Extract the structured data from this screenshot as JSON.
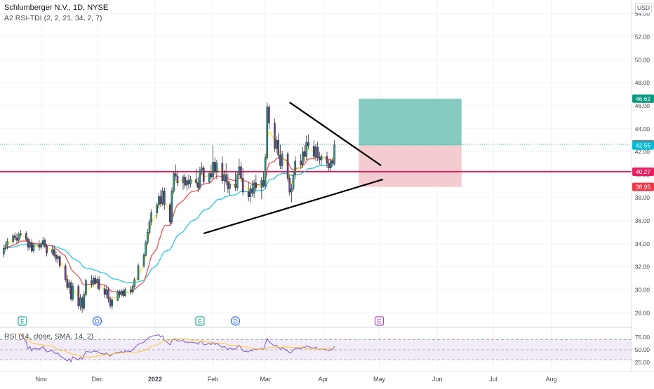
{
  "header": {
    "title": "Schlumberger N.V., 1D, NYSE",
    "indicator": "A2 RSI-TDI (2, 2, 21, 34, 2, 7)",
    "currency": "USD"
  },
  "rsi_pane": {
    "label": "RSI (14, close, SMA, 14, 2)"
  },
  "chart_data": [
    {
      "type": "candlestick",
      "y_ticks": [
        "54.00",
        "52.00",
        "50.00",
        "48.00",
        "46.00",
        "44.00",
        "42.00",
        "40.00",
        "38.00",
        "36.00",
        "34.00",
        "32.00",
        "30.00",
        "28.00"
      ],
      "ylim": [
        26.8,
        55.2
      ],
      "x_ticks": [
        {
          "label": "Nov",
          "day": 29
        },
        {
          "label": "Dec",
          "day": 59
        },
        {
          "label": "2022",
          "day": 90
        },
        {
          "label": "Feb",
          "day": 121
        },
        {
          "label": "Mar",
          "day": 149
        },
        {
          "label": "Apr",
          "day": 180
        },
        {
          "label": "May",
          "day": 210
        },
        {
          "label": "Jun",
          "day": 241
        },
        {
          "label": "Jul",
          "day": 271
        },
        {
          "label": "Aug",
          "day": 302
        }
      ],
      "xlim": [
        7,
        345
      ],
      "price_labels": [
        {
          "value": 46.62,
          "text": "46.62",
          "color": "#089981"
        },
        {
          "value": 42.65,
          "text": "42.65",
          "color": "#787b86"
        },
        {
          "value": 42.55,
          "text": "42.55",
          "color": "#00bcd4"
        },
        {
          "value": 40.27,
          "text": "40.27",
          "color": "#e91e63"
        },
        {
          "value": 38.95,
          "text": "38.95",
          "color": "#f23645"
        }
      ],
      "horizontal_line": {
        "value": 40.27,
        "color": "#e91e63"
      },
      "last_price_line": {
        "value": 42.65
      },
      "triangle_upper": {
        "from": {
          "day": 162,
          "price": 46.3
        },
        "to": {
          "day": 211,
          "price": 40.8
        }
      },
      "triangle_lower": {
        "from": {
          "day": 116,
          "price": 34.9
        },
        "to": {
          "day": 212,
          "price": 39.6
        }
      },
      "position": {
        "day_start": 199,
        "day_end": 254,
        "entry": 42.55,
        "target": 46.62,
        "stop": 38.95,
        "profit_color": "#80c7bf",
        "loss_color": "#f3c8cc"
      },
      "events": [
        {
          "type": "E",
          "day": 19,
          "color": "#26a69a"
        },
        {
          "type": "D",
          "day": 59,
          "color": "#2962ff"
        },
        {
          "type": "E",
          "day": 114,
          "color": "#26a69a"
        },
        {
          "type": "D",
          "day": 133,
          "color": "#2962ff"
        },
        {
          "type": "E",
          "day": 210,
          "color": "#ab47bc"
        }
      ],
      "colors": {
        "up": "#26a69a",
        "down": "#7e3f98",
        "ema_fast": "#ffeb3b",
        "ema_mid": "#ef5350",
        "ema_slow": "#26c6da"
      },
      "candles": [
        [
          9,
          33.1,
          33.9,
          32.8,
          33.6
        ],
        [
          10,
          33.6,
          34.2,
          33.3,
          33.9
        ],
        [
          11,
          33.9,
          34.5,
          33.5,
          34.2
        ],
        [
          14,
          34.2,
          34.9,
          34.0,
          34.7
        ],
        [
          15,
          34.7,
          35.0,
          34.3,
          34.5
        ],
        [
          16,
          34.5,
          34.9,
          34.0,
          34.3
        ],
        [
          17,
          34.3,
          35.0,
          34.1,
          34.8
        ],
        [
          18,
          34.8,
          35.2,
          34.5,
          34.9
        ],
        [
          21,
          34.9,
          35.1,
          34.2,
          34.4
        ],
        [
          22,
          34.4,
          34.6,
          33.4,
          33.7
        ],
        [
          23,
          33.7,
          34.4,
          33.5,
          34.1
        ],
        [
          24,
          34.1,
          34.4,
          33.2,
          33.4
        ],
        [
          25,
          33.4,
          34.1,
          33.2,
          33.9
        ],
        [
          28,
          33.9,
          34.3,
          33.4,
          33.7
        ],
        [
          29,
          33.7,
          34.2,
          33.5,
          34.0
        ],
        [
          30,
          34.0,
          34.6,
          33.7,
          34.3
        ],
        [
          31,
          34.3,
          34.5,
          33.6,
          33.8
        ],
        [
          32,
          33.8,
          34.0,
          32.9,
          33.2
        ],
        [
          35,
          33.2,
          33.8,
          33.0,
          33.5
        ],
        [
          36,
          33.5,
          33.7,
          32.8,
          33.0
        ],
        [
          37,
          33.0,
          33.4,
          32.4,
          32.7
        ],
        [
          38,
          32.7,
          33.1,
          32.3,
          32.9
        ],
        [
          39,
          32.9,
          33.0,
          31.9,
          32.1
        ],
        [
          42,
          32.1,
          32.3,
          30.7,
          30.9
        ],
        [
          43,
          30.9,
          31.3,
          30.0,
          30.2
        ],
        [
          44,
          30.2,
          30.9,
          29.7,
          30.6
        ],
        [
          45,
          30.6,
          30.8,
          29.0,
          29.2
        ],
        [
          46,
          29.2,
          30.6,
          29.0,
          30.3
        ],
        [
          49,
          30.3,
          30.5,
          28.3,
          28.6
        ],
        [
          50,
          28.6,
          29.6,
          28.2,
          29.3
        ],
        [
          51,
          29.3,
          29.5,
          28.0,
          28.4
        ],
        [
          52,
          28.4,
          29.9,
          28.2,
          29.6
        ],
        [
          53,
          29.6,
          31.0,
          29.4,
          30.8
        ],
        [
          56,
          30.8,
          31.3,
          30.2,
          30.5
        ],
        [
          57,
          30.5,
          31.2,
          30.3,
          31.0
        ],
        [
          58,
          31.0,
          31.3,
          30.4,
          30.6
        ],
        [
          59,
          30.6,
          31.1,
          30.1,
          30.9
        ],
        [
          60,
          30.9,
          31.2,
          29.9,
          30.1
        ],
        [
          63,
          30.1,
          30.4,
          29.3,
          29.6
        ],
        [
          64,
          29.6,
          30.3,
          29.3,
          30.0
        ],
        [
          65,
          30.0,
          30.2,
          28.9,
          29.2
        ],
        [
          66,
          29.2,
          29.4,
          28.4,
          28.6
        ],
        [
          67,
          28.6,
          29.4,
          28.3,
          29.1
        ],
        [
          70,
          29.1,
          30.0,
          29.0,
          29.8
        ],
        [
          71,
          29.8,
          30.0,
          29.3,
          29.6
        ],
        [
          72,
          29.6,
          30.1,
          29.4,
          29.9
        ],
        [
          73,
          29.9,
          30.1,
          29.3,
          29.5
        ],
        [
          74,
          29.5,
          30.2,
          29.4,
          30.0
        ],
        [
          77,
          30.0,
          30.3,
          29.6,
          29.8
        ],
        [
          78,
          29.8,
          30.5,
          29.6,
          30.3
        ],
        [
          79,
          30.3,
          31.1,
          30.1,
          30.9
        ],
        [
          81,
          30.9,
          32.3,
          30.8,
          32.1
        ],
        [
          84,
          32.1,
          33.2,
          31.9,
          33.0
        ],
        [
          85,
          33.0,
          34.3,
          32.9,
          34.1
        ],
        [
          86,
          34.1,
          35.3,
          33.9,
          35.0
        ],
        [
          87,
          35.0,
          36.2,
          34.8,
          35.9
        ],
        [
          88,
          35.9,
          37.0,
          35.6,
          36.7
        ],
        [
          91,
          36.7,
          37.6,
          36.2,
          37.4
        ],
        [
          92,
          37.4,
          38.4,
          37.1,
          38.1
        ],
        [
          93,
          38.1,
          38.7,
          37.2,
          37.5
        ],
        [
          94,
          37.5,
          38.9,
          37.3,
          38.6
        ],
        [
          95,
          38.6,
          38.9,
          37.0,
          37.4
        ],
        [
          98,
          37.4,
          37.6,
          35.6,
          35.9
        ],
        [
          99,
          35.9,
          38.9,
          35.7,
          38.6
        ],
        [
          100,
          38.6,
          40.3,
          38.4,
          40.1
        ],
        [
          101,
          40.1,
          40.9,
          39.5,
          39.9
        ],
        [
          102,
          39.9,
          40.3,
          39.0,
          39.3
        ],
        [
          105,
          39.3,
          40.0,
          38.7,
          39.8
        ],
        [
          106,
          39.8,
          40.1,
          38.8,
          39.1
        ],
        [
          107,
          39.1,
          39.8,
          38.6,
          39.5
        ],
        [
          108,
          39.5,
          40.0,
          38.8,
          39.2
        ],
        [
          109,
          39.2,
          39.9,
          38.9,
          39.6
        ],
        [
          112,
          39.6,
          40.5,
          39.0,
          39.3
        ],
        [
          113,
          39.3,
          39.8,
          38.5,
          38.9
        ],
        [
          114,
          38.9,
          40.7,
          38.7,
          40.4
        ],
        [
          115,
          40.4,
          41.1,
          40.0,
          40.6
        ],
        [
          116,
          40.6,
          40.8,
          39.2,
          39.4
        ],
        [
          119,
          39.4,
          40.3,
          39.2,
          40.1
        ],
        [
          120,
          40.1,
          40.9,
          39.6,
          39.8
        ],
        [
          121,
          39.8,
          42.6,
          39.6,
          41.1
        ],
        [
          122,
          41.1,
          41.5,
          40.0,
          40.3
        ],
        [
          123,
          40.3,
          41.3,
          39.6,
          41.0
        ],
        [
          126,
          41.0,
          41.6,
          39.2,
          39.5
        ],
        [
          127,
          39.5,
          40.4,
          38.5,
          40.0
        ],
        [
          128,
          40.0,
          41.0,
          39.1,
          39.4
        ],
        [
          129,
          39.4,
          40.1,
          38.4,
          38.8
        ],
        [
          130,
          38.8,
          39.5,
          38.2,
          39.2
        ],
        [
          133,
          39.2,
          40.2,
          38.6,
          38.9
        ],
        [
          134,
          38.9,
          40.3,
          38.6,
          40.0
        ],
        [
          135,
          40.0,
          41.4,
          39.8,
          40.7
        ],
        [
          136,
          40.7,
          41.1,
          39.4,
          39.7
        ],
        [
          137,
          39.7,
          40.6,
          38.2,
          38.5
        ],
        [
          140,
          38.5,
          39.4,
          37.7,
          38.1
        ],
        [
          141,
          38.1,
          39.1,
          37.6,
          38.8
        ],
        [
          142,
          38.8,
          39.5,
          38.1,
          38.4
        ],
        [
          143,
          38.4,
          39.6,
          38.0,
          39.3
        ],
        [
          144,
          39.3,
          40.0,
          38.6,
          38.9
        ],
        [
          147,
          38.9,
          39.8,
          37.9,
          39.5
        ],
        [
          148,
          39.5,
          40.3,
          38.9,
          39.0
        ],
        [
          149,
          39.0,
          41.8,
          38.8,
          41.5
        ],
        [
          150,
          41.5,
          46.3,
          41.3,
          45.9
        ],
        [
          151,
          45.9,
          46.1,
          44.0,
          44.5
        ],
        [
          154,
          44.5,
          44.9,
          42.0,
          42.3
        ],
        [
          155,
          42.3,
          43.3,
          41.9,
          43.0
        ],
        [
          156,
          43.0,
          43.6,
          41.4,
          41.7
        ],
        [
          157,
          41.7,
          42.6,
          40.5,
          40.8
        ],
        [
          158,
          40.8,
          42.1,
          40.5,
          41.8
        ],
        [
          161,
          41.8,
          42.0,
          39.4,
          39.7
        ],
        [
          162,
          39.7,
          40.0,
          38.2,
          38.5
        ],
        [
          163,
          38.5,
          39.2,
          37.6,
          38.8
        ],
        [
          164,
          38.8,
          40.3,
          38.6,
          40.0
        ],
        [
          165,
          40.0,
          41.6,
          39.6,
          41.2
        ],
        [
          168,
          41.2,
          41.8,
          40.5,
          40.9
        ],
        [
          169,
          40.9,
          42.4,
          40.6,
          42.0
        ],
        [
          170,
          42.0,
          42.6,
          41.1,
          41.6
        ],
        [
          171,
          41.6,
          43.4,
          41.3,
          42.8
        ],
        [
          172,
          42.8,
          43.5,
          42.2,
          42.5
        ],
        [
          175,
          42.5,
          43.0,
          41.3,
          41.6
        ],
        [
          176,
          41.6,
          42.7,
          41.2,
          42.4
        ],
        [
          177,
          42.4,
          42.9,
          41.2,
          41.5
        ],
        [
          178,
          41.5,
          42.0,
          40.9,
          41.3
        ],
        [
          179,
          41.3,
          41.8,
          40.8,
          41.6
        ],
        [
          182,
          41.6,
          42.0,
          40.6,
          41.0
        ],
        [
          183,
          41.0,
          41.3,
          40.3,
          40.6
        ],
        [
          184,
          40.6,
          41.4,
          40.3,
          41.2
        ],
        [
          185,
          41.2,
          41.5,
          40.7,
          41.0
        ],
        [
          186,
          41.0,
          43.0,
          40.8,
          42.6
        ]
      ]
    },
    {
      "type": "line",
      "name": "RSI (14, close, SMA, 14, 2)",
      "y_ticks": [
        "75.00",
        "50.00",
        "25.00"
      ],
      "ylim": [
        10,
        90
      ],
      "bands": [
        70,
        50,
        30
      ],
      "line_color": "#7e57c2",
      "smoothing_color": "#ffca28",
      "band_fill": "#ede7f6"
    }
  ]
}
